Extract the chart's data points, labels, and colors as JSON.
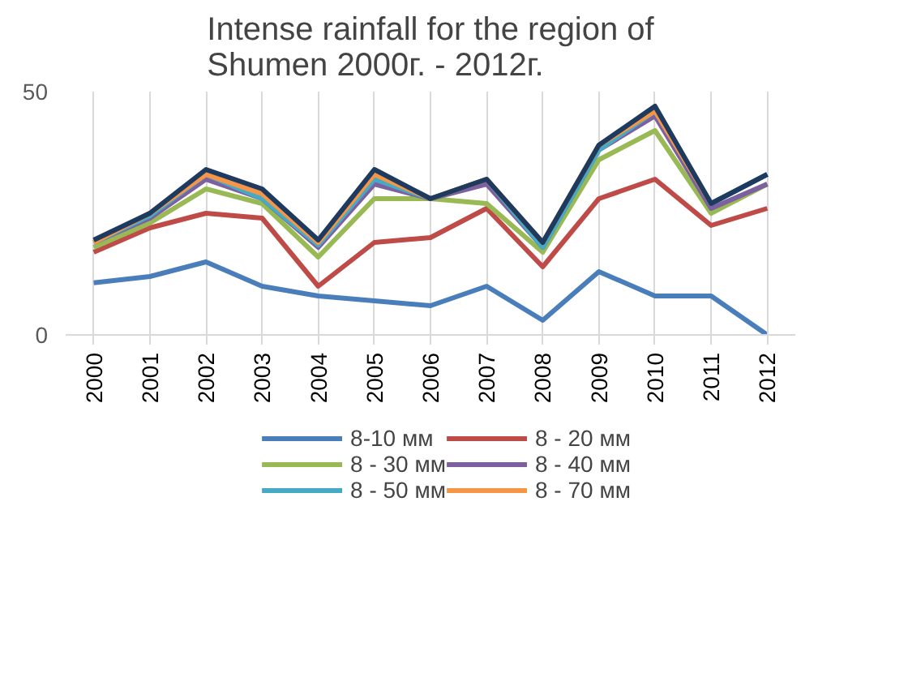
{
  "chart_data": {
    "type": "line",
    "title": "Intense rainfall for the region of Shumen 2000г. - 2012г.",
    "categories": [
      "2000",
      "2001",
      "2002",
      "2003",
      "2004",
      "2005",
      "2006",
      "2007",
      "2008",
      "2009",
      "2010",
      "2011",
      "2012"
    ],
    "ylim": [
      0,
      50
    ],
    "yticks": [
      0,
      50
    ],
    "grid": "x",
    "legend": "bottom",
    "marker": "none",
    "line_style": "solid",
    "series": [
      {
        "name": "8-10 мм",
        "color": "#4a7ebb",
        "values": [
          10.7,
          12,
          15,
          10,
          8,
          7,
          6,
          10,
          3,
          13,
          8,
          8,
          0
        ]
      },
      {
        "name": "8 - 20 мм",
        "color": "#be4b48",
        "values": [
          17,
          22,
          25,
          24,
          10,
          19,
          20,
          26,
          14,
          28,
          32,
          22.5,
          26
        ]
      },
      {
        "name": "8 - 30 мм",
        "color": "#98b954",
        "values": [
          18,
          23,
          30,
          27,
          16,
          28,
          28,
          27,
          17,
          36,
          42,
          25,
          31
        ]
      },
      {
        "name": "8 - 40 мм",
        "color": "#7d60a0",
        "values": [
          19,
          24,
          32,
          28,
          18,
          31,
          28,
          31,
          18,
          38,
          45,
          26,
          31
        ]
      },
      {
        "name": "8 - 50 мм",
        "color": "#46aac5",
        "values": [
          19,
          24.5,
          33,
          28,
          18.5,
          32,
          28,
          32,
          18,
          38,
          46,
          27,
          33
        ]
      },
      {
        "name": "8 - 70 мм",
        "color": "#f69545",
        "values": [
          19,
          25,
          33,
          29,
          19,
          33,
          28,
          32,
          19,
          39,
          46,
          27,
          null
        ]
      },
      {
        "color": "#1f3a5f",
        "values": [
          19.5,
          25,
          34,
          30,
          19.5,
          34,
          28,
          32,
          19,
          39,
          47,
          27,
          33
        ]
      }
    ]
  }
}
